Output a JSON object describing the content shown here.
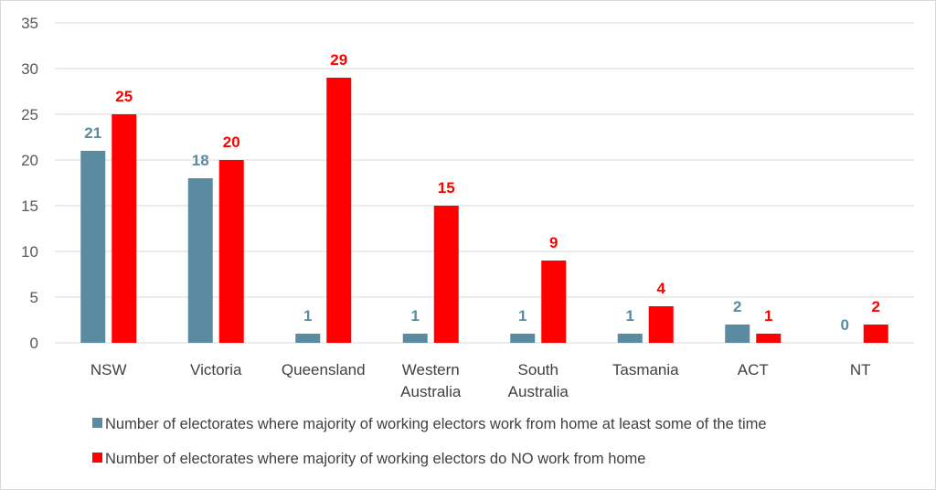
{
  "chart_data": {
    "type": "bar",
    "categories": [
      [
        "NSW"
      ],
      [
        "Victoria"
      ],
      [
        "Queensland"
      ],
      [
        "Western",
        "Australia"
      ],
      [
        "South",
        "Australia"
      ],
      [
        "Tasmania"
      ],
      [
        "ACT"
      ],
      [
        "NT"
      ]
    ],
    "series": [
      {
        "name": "Number of electorates where majority of working electors work from home at least some of the time",
        "color": "#5b8ba0",
        "label_color": "#5b8ba0",
        "values": [
          21,
          18,
          1,
          1,
          1,
          1,
          2,
          0
        ]
      },
      {
        "name": "Number of electorates where majority of working electors do NO work from home",
        "color": "#ff0000",
        "label_color": "#ff0000",
        "values": [
          25,
          20,
          29,
          15,
          9,
          4,
          1,
          2
        ]
      }
    ],
    "ylim": [
      0,
      35
    ],
    "yticks": [
      0,
      5,
      10,
      15,
      20,
      25,
      30,
      35
    ],
    "grid": true,
    "data_labels": true,
    "legend_position": "bottom",
    "gridline_color": "#d9d9d9"
  }
}
